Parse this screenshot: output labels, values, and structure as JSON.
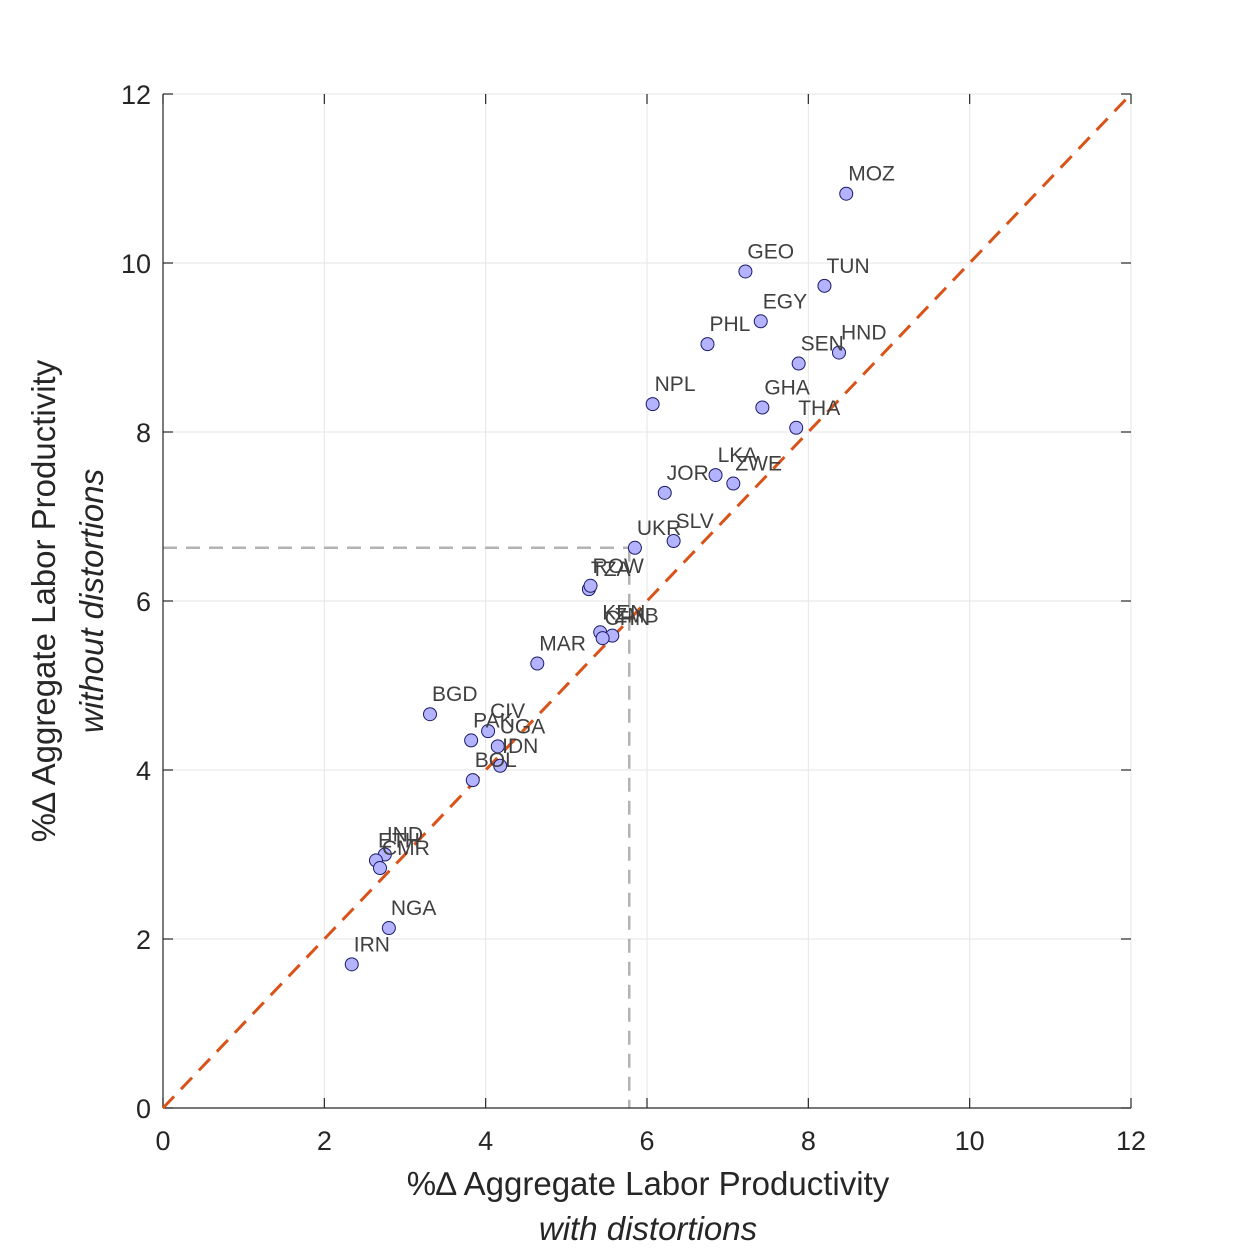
{
  "chart_data": {
    "type": "scatter",
    "xlabel": "%∆ Aggregate Labor Productivity",
    "xlabel_sub": "with distortions",
    "ylabel": "%∆ Aggregate Labor Productivity",
    "ylabel_sub": "without distortions",
    "xlim": [
      0,
      12
    ],
    "ylim": [
      0,
      12
    ],
    "xticks": [
      0,
      2,
      4,
      6,
      8,
      10,
      12
    ],
    "yticks": [
      0,
      2,
      4,
      6,
      8,
      10,
      12
    ],
    "grid": true,
    "reference_line": {
      "type": "45-degree",
      "style": "dashed",
      "color": "#d95319"
    },
    "mean_guides": {
      "x": 5.78,
      "y": 6.63,
      "style": "dashed",
      "color": "#b3b3b3"
    },
    "marker_color": "#b3b3ff",
    "marker_edge": "#1a1a66",
    "points": [
      {
        "label": "MOZ",
        "x": 8.47,
        "y": 10.82
      },
      {
        "label": "GEO",
        "x": 7.22,
        "y": 9.9
      },
      {
        "label": "TUN",
        "x": 8.2,
        "y": 9.73
      },
      {
        "label": "EGY",
        "x": 7.41,
        "y": 9.31
      },
      {
        "label": "PHL",
        "x": 6.75,
        "y": 9.04
      },
      {
        "label": "HND",
        "x": 8.38,
        "y": 8.94
      },
      {
        "label": "SEN",
        "x": 7.88,
        "y": 8.81
      },
      {
        "label": "NPL",
        "x": 6.07,
        "y": 8.33
      },
      {
        "label": "GHA",
        "x": 7.43,
        "y": 8.29
      },
      {
        "label": "THA",
        "x": 7.85,
        "y": 8.05
      },
      {
        "label": "LKA",
        "x": 6.85,
        "y": 7.49
      },
      {
        "label": "ZWE",
        "x": 7.07,
        "y": 7.39
      },
      {
        "label": "JOR",
        "x": 6.22,
        "y": 7.28
      },
      {
        "label": "SLV",
        "x": 6.33,
        "y": 6.71
      },
      {
        "label": "UKR",
        "x": 5.85,
        "y": 6.63
      },
      {
        "label": "TZA",
        "x": 5.28,
        "y": 6.14
      },
      {
        "label": "ROW",
        "x": 5.3,
        "y": 6.18
      },
      {
        "label": "KEN",
        "x": 5.42,
        "y": 5.63
      },
      {
        "label": "ZMB",
        "x": 5.57,
        "y": 5.59
      },
      {
        "label": "CHN",
        "x": 5.45,
        "y": 5.56
      },
      {
        "label": "MAR",
        "x": 4.64,
        "y": 5.26
      },
      {
        "label": "BGD",
        "x": 3.31,
        "y": 4.66
      },
      {
        "label": "CIV",
        "x": 4.03,
        "y": 4.46
      },
      {
        "label": "PAK",
        "x": 3.82,
        "y": 4.35
      },
      {
        "label": "UGA",
        "x": 4.15,
        "y": 4.28
      },
      {
        "label": "IDN",
        "x": 4.18,
        "y": 4.05
      },
      {
        "label": "BOL",
        "x": 3.84,
        "y": 3.88
      },
      {
        "label": "IND",
        "x": 2.75,
        "y": 3.0
      },
      {
        "label": "ETH",
        "x": 2.64,
        "y": 2.93
      },
      {
        "label": "CMR",
        "x": 2.69,
        "y": 2.84
      },
      {
        "label": "NGA",
        "x": 2.8,
        "y": 2.13
      },
      {
        "label": "IRN",
        "x": 2.34,
        "y": 1.7
      }
    ]
  }
}
